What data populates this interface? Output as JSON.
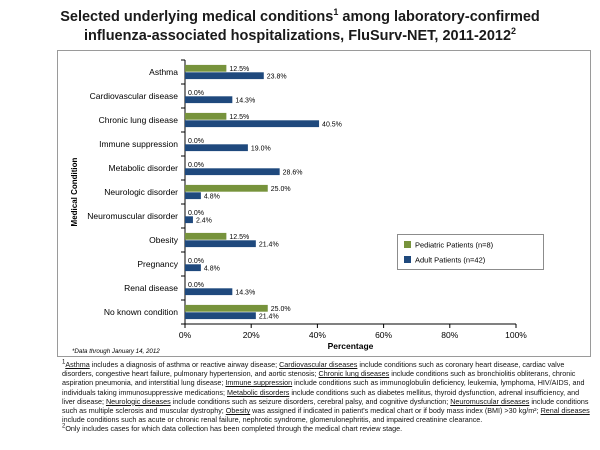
{
  "title": {
    "line1": "Selected underlying medical conditions",
    "line1_sup": "1",
    "line1_tail": " among laboratory-confirmed",
    "line2": "influenza-associated hospitalizations, FluSurv-NET, 2011-2012",
    "line2_sup": "2"
  },
  "date_note": "*Data through January 14, 2012",
  "colors": {
    "pediatric": "#77933C",
    "adult": "#1F497D",
    "axis": "#000000",
    "border": "#9a9a9a"
  },
  "chart_data": {
    "type": "bar",
    "orientation": "horizontal",
    "title": "Selected underlying medical conditions among laboratory-confirmed influenza-associated hospitalizations, FluSurv-NET, 2011-2012",
    "xlabel": "Percentage",
    "ylabel": "Medical Condition",
    "xlim": [
      0,
      100
    ],
    "xticks": [
      "0%",
      "20%",
      "40%",
      "60%",
      "80%",
      "100%"
    ],
    "grid": false,
    "legend_position": "right",
    "categories": [
      "Asthma",
      "Cardiovascular disease",
      "Chronic lung disease",
      "Immune suppression",
      "Metabolic disorder",
      "Neurologic disorder",
      "Neuromuscular disorder",
      "Obesity",
      "Pregnancy",
      "Renal disease",
      "No known condition"
    ],
    "series": [
      {
        "name": "Pediatric Patients (n=8)",
        "values": [
          12.5,
          0.0,
          12.5,
          0.0,
          0.0,
          25.0,
          0.0,
          12.5,
          0.0,
          0.0,
          25.0
        ],
        "labels": [
          "12.5%",
          "0.0%",
          "12.5%",
          "0.0%",
          "0.0%",
          "25.0%",
          "0.0%",
          "12.5%",
          "0.0%",
          "0.0%",
          "25.0%"
        ]
      },
      {
        "name": "Adult Patients (n=42)",
        "values": [
          23.8,
          14.3,
          40.5,
          19.0,
          28.6,
          4.8,
          2.4,
          21.4,
          4.8,
          14.3,
          21.4
        ],
        "labels": [
          "23.8%",
          "14.3%",
          "40.5%",
          "19.0%",
          "28.6%",
          "4.8%",
          "2.4%",
          "21.4%",
          "4.8%",
          "14.3%",
          "21.4%"
        ]
      }
    ]
  },
  "footnotes": {
    "fn1_marker": "1",
    "fn1": [
      {
        "u": "Asthma",
        "t": " includes a diagnosis of asthma or reactive airway disease; "
      },
      {
        "u": "Cardiovascular diseases",
        "t": " include conditions such as coronary heart disease, cardiac valve disorders, congestive heart failure, pulmonary hypertension, and aortic stenosis; "
      },
      {
        "u": "Chronic lung diseases",
        "t": " include conditions such as bronchiolitis obliterans, chronic aspiration pneumonia, and interstitial lung disease; "
      },
      {
        "u": "Immune suppression",
        "t": " include conditions such as immunoglobulin deficiency, leukemia, lymphoma, HIV/AIDS, and individuals taking immunosuppressive medications; "
      },
      {
        "u": "Metabolic disorders",
        "t": " include conditions such as diabetes mellitus, thyroid dysfunction, adrenal insufficiency, and liver disease; "
      },
      {
        "u": "Neurologic diseases",
        "t": " include conditions such as seizure disorders, cerebral palsy, and cognitive dysfunction; "
      },
      {
        "u": "Neuromuscular diseases",
        "t": " include conditions such as multiple sclerosis and muscular dystrophy; "
      },
      {
        "u": "Obesity",
        "t": " was assigned if indicated in patient's medical chart or if body mass index (BMI) >30 kg/m²; "
      },
      {
        "u": "Renal diseases",
        "t": " include conditions such as acute or chronic renal failure, nephrotic syndrome, glomerulonephritis, and impaired creatinine clearance."
      }
    ],
    "fn2_marker": "2",
    "fn2": "Only includes cases for which data collection has been completed through the medical chart review stage."
  }
}
